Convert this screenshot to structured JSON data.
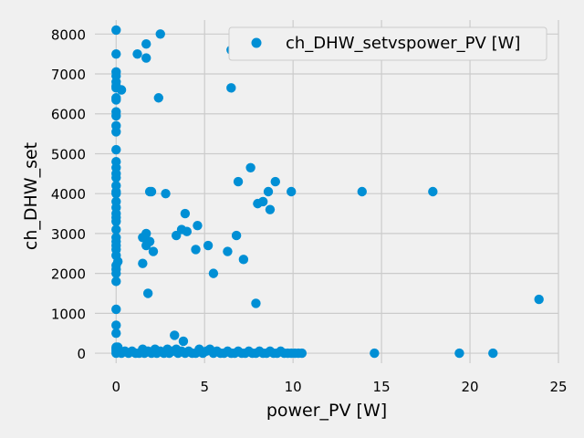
{
  "chart_data": {
    "type": "scatter",
    "title": "",
    "xlabel": "power_PV [W]",
    "ylabel": "ch_DHW_set",
    "xlim": [
      -1.2,
      25
    ],
    "ylim": [
      -250,
      8350
    ],
    "x_ticks": [
      0,
      5,
      10,
      15,
      20,
      25
    ],
    "y_ticks": [
      0,
      1000,
      2000,
      3000,
      4000,
      5000,
      6000,
      7000,
      8000
    ],
    "grid": true,
    "legend_position": "top-right",
    "colors": {
      "series": "#008fd5",
      "grid": "#cbcbcb",
      "background": "#f0f0f0"
    },
    "series": [
      {
        "name": "ch_DHW_setvspower_PV [W]",
        "points": [
          [
            0,
            8100
          ],
          [
            0,
            7500
          ],
          [
            0,
            7050
          ],
          [
            0,
            6950
          ],
          [
            0,
            6800
          ],
          [
            0,
            6700
          ],
          [
            0,
            6650
          ],
          [
            0,
            6400
          ],
          [
            0,
            6350
          ],
          [
            0,
            6050
          ],
          [
            0,
            5950
          ],
          [
            0,
            5700
          ],
          [
            0,
            5550
          ],
          [
            0,
            5100
          ],
          [
            0,
            4800
          ],
          [
            0,
            4650
          ],
          [
            0,
            4500
          ],
          [
            0,
            4400
          ],
          [
            0,
            4200
          ],
          [
            0,
            4050
          ],
          [
            0,
            4000
          ],
          [
            0,
            3800
          ],
          [
            0,
            3650
          ],
          [
            0,
            3500
          ],
          [
            0,
            3400
          ],
          [
            0,
            3300
          ],
          [
            0,
            3100
          ],
          [
            0,
            2900
          ],
          [
            0,
            2800
          ],
          [
            0,
            2700
          ],
          [
            0,
            2600
          ],
          [
            0,
            2450
          ],
          [
            0,
            2200
          ],
          [
            0,
            2100
          ],
          [
            0,
            2000
          ],
          [
            0,
            1800
          ],
          [
            0,
            1100
          ],
          [
            0,
            700
          ],
          [
            0,
            500
          ],
          [
            0,
            150
          ],
          [
            0,
            100
          ],
          [
            0,
            50
          ],
          [
            0,
            0
          ],
          [
            0.1,
            2300
          ],
          [
            0.1,
            150
          ],
          [
            0.1,
            50
          ],
          [
            0.3,
            6600
          ],
          [
            1.2,
            7500
          ],
          [
            1.7,
            7750
          ],
          [
            1.7,
            7400
          ],
          [
            2.5,
            8000
          ],
          [
            2.4,
            6400
          ],
          [
            1.5,
            2900
          ],
          [
            1.5,
            2250
          ],
          [
            1.7,
            3000
          ],
          [
            1.7,
            2700
          ],
          [
            1.9,
            2800
          ],
          [
            1.9,
            4050
          ],
          [
            2.0,
            4050
          ],
          [
            2.1,
            2550
          ],
          [
            1.8,
            1500
          ],
          [
            2.8,
            4000
          ],
          [
            3.4,
            2950
          ],
          [
            3.7,
            3100
          ],
          [
            3.9,
            3500
          ],
          [
            4.0,
            3050
          ],
          [
            4.5,
            2600
          ],
          [
            4.6,
            3200
          ],
          [
            5.2,
            2700
          ],
          [
            5.5,
            2000
          ],
          [
            6.5,
            7600
          ],
          [
            6.5,
            6650
          ],
          [
            6.3,
            2550
          ],
          [
            6.8,
            2950
          ],
          [
            6.9,
            4300
          ],
          [
            7.2,
            2350
          ],
          [
            7.6,
            4650
          ],
          [
            7.9,
            1250
          ],
          [
            8.0,
            3750
          ],
          [
            8.3,
            3800
          ],
          [
            8.6,
            4050
          ],
          [
            8.7,
            3600
          ],
          [
            9.0,
            4300
          ],
          [
            9.9,
            4050
          ],
          [
            13.9,
            4050
          ],
          [
            17.9,
            4050
          ],
          [
            23.9,
            1350
          ],
          [
            3.3,
            450
          ],
          [
            3.8,
            300
          ],
          [
            14.6,
            0
          ],
          [
            19.4,
            0
          ],
          [
            21.3,
            0
          ],
          [
            0.3,
            0
          ],
          [
            0.5,
            50
          ],
          [
            0.7,
            0
          ],
          [
            0.9,
            50
          ],
          [
            1.1,
            0
          ],
          [
            1.3,
            0
          ],
          [
            1.5,
            100
          ],
          [
            1.6,
            0
          ],
          [
            1.8,
            50
          ],
          [
            2.0,
            0
          ],
          [
            2.2,
            100
          ],
          [
            2.3,
            0
          ],
          [
            2.5,
            50
          ],
          [
            2.7,
            0
          ],
          [
            2.9,
            100
          ],
          [
            3.0,
            0
          ],
          [
            3.2,
            50
          ],
          [
            3.4,
            100
          ],
          [
            3.5,
            0
          ],
          [
            3.7,
            50
          ],
          [
            3.9,
            0
          ],
          [
            4.1,
            50
          ],
          [
            4.3,
            0
          ],
          [
            4.5,
            0
          ],
          [
            4.7,
            100
          ],
          [
            4.9,
            0
          ],
          [
            5.1,
            50
          ],
          [
            5.3,
            100
          ],
          [
            5.5,
            0
          ],
          [
            5.7,
            50
          ],
          [
            5.9,
            0
          ],
          [
            6.1,
            0
          ],
          [
            6.3,
            50
          ],
          [
            6.5,
            0
          ],
          [
            6.7,
            0
          ],
          [
            6.9,
            50
          ],
          [
            7.1,
            0
          ],
          [
            7.3,
            0
          ],
          [
            7.5,
            50
          ],
          [
            7.7,
            0
          ],
          [
            7.9,
            0
          ],
          [
            8.1,
            50
          ],
          [
            8.3,
            0
          ],
          [
            8.5,
            0
          ],
          [
            8.7,
            50
          ],
          [
            8.9,
            0
          ],
          [
            9.1,
            0
          ],
          [
            9.3,
            50
          ],
          [
            9.5,
            0
          ],
          [
            9.7,
            0
          ],
          [
            9.9,
            0
          ],
          [
            10.1,
            0
          ],
          [
            10.3,
            0
          ],
          [
            10.5,
            0
          ]
        ]
      }
    ]
  }
}
